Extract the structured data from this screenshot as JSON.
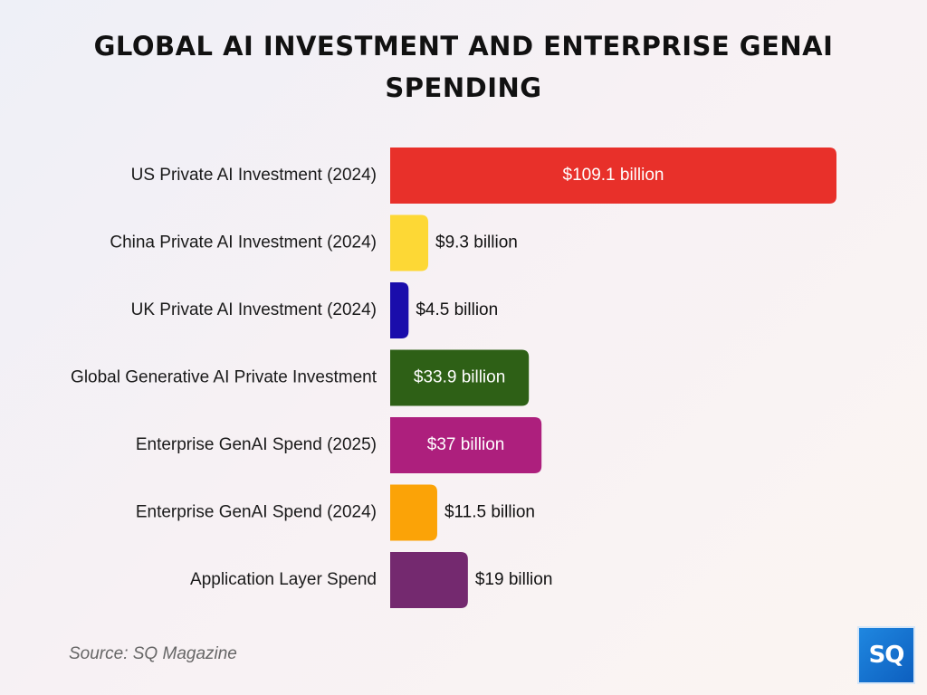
{
  "chart_data": {
    "type": "bar",
    "orientation": "horizontal",
    "title": "GLOBAL AI INVESTMENT AND ENTERPRISE GENAI SPENDING",
    "unit": "billion",
    "categories": [
      "US Private AI Investment (2024)",
      "China Private AI Investment (2024)",
      "UK Private AI Investment (2024)",
      "Global Generative AI Private Investment",
      "Enterprise GenAI Spend (2025)",
      "Enterprise GenAI Spend (2024)",
      "Application Layer Spend"
    ],
    "values": [
      109.1,
      9.3,
      4.5,
      33.9,
      37,
      11.5,
      19
    ],
    "value_labels": [
      "$109.1 billion",
      "$9.3 billion",
      "$4.5 billion",
      "$33.9 billion",
      "$37 billion",
      "$11.5 billion",
      "$19 billion"
    ],
    "colors": [
      "#e8302a",
      "#fdd835",
      "#1a0dab",
      "#2e6016",
      "#ad1f7d",
      "#fba307",
      "#74296f"
    ],
    "xlim": [
      0,
      109.1
    ],
    "grid": false,
    "legend": "none"
  },
  "source": "Source: SQ Magazine",
  "brand": {
    "logo_text": "SQ"
  }
}
